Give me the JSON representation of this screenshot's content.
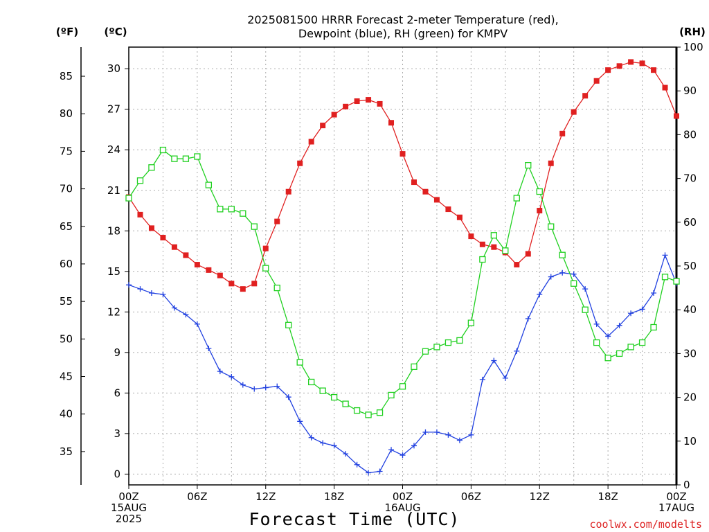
{
  "chart_data": {
    "type": "line",
    "title_lines": [
      "2025081500 HRRR Forecast 2-meter Temperature (red),",
      "Dewpoint (blue), RH (green) for KMPV"
    ],
    "xlabel": "Forecast Time (UTC)",
    "credit": "coolwx.com/modelts",
    "left_unit_f": "(ºF)",
    "left_unit_c": "(ºC)",
    "right_unit": "(RH)",
    "x_hours": [
      0,
      1,
      2,
      3,
      4,
      5,
      6,
      7,
      8,
      9,
      10,
      11,
      12,
      13,
      14,
      15,
      16,
      17,
      18,
      19,
      20,
      21,
      22,
      23,
      24,
      25,
      26,
      27,
      28,
      29,
      30,
      31,
      32,
      33,
      34,
      35,
      36,
      37,
      38,
      39,
      40,
      41,
      42,
      43,
      44,
      45,
      46,
      47,
      48
    ],
    "x_ticks": [
      {
        "hour": 0,
        "lines": [
          "00Z",
          "15AUG",
          "2025"
        ]
      },
      {
        "hour": 6,
        "lines": [
          "06Z"
        ]
      },
      {
        "hour": 12,
        "lines": [
          "12Z"
        ]
      },
      {
        "hour": 18,
        "lines": [
          "18Z"
        ]
      },
      {
        "hour": 24,
        "lines": [
          "00Z",
          "16AUG"
        ]
      },
      {
        "hour": 30,
        "lines": [
          "06Z"
        ]
      },
      {
        "hour": 36,
        "lines": [
          "12Z"
        ]
      },
      {
        "hour": 42,
        "lines": [
          "18Z"
        ]
      },
      {
        "hour": 48,
        "lines": [
          "00Z",
          "17AUG"
        ]
      }
    ],
    "xlim": [
      0,
      48
    ],
    "y_celsius": {
      "ticks": [
        0,
        3,
        6,
        9,
        12,
        15,
        18,
        21,
        24,
        27,
        30
      ],
      "lim": [
        -0.8,
        31.6
      ]
    },
    "y_fahrenheit": {
      "ticks": [
        35,
        40,
        45,
        50,
        55,
        60,
        65,
        70,
        75,
        80,
        85
      ]
    },
    "y_rh": {
      "ticks": [
        0,
        10,
        20,
        30,
        40,
        50,
        60,
        70,
        80,
        90,
        100
      ],
      "lim": [
        0,
        100
      ]
    },
    "series": [
      {
        "axis": "celsius",
        "color": "#e02020",
        "marker": "filled-square",
        "values": [
          20.5,
          19.2,
          18.2,
          17.5,
          16.8,
          16.2,
          15.5,
          15.1,
          14.7,
          14.1,
          13.7,
          14.1,
          16.7,
          18.7,
          20.9,
          23.0,
          24.6,
          25.8,
          26.6,
          27.2,
          27.6,
          27.7,
          27.4,
          26.0,
          23.7,
          21.6,
          20.9,
          20.3,
          19.6,
          19.0,
          17.6,
          17.0,
          16.8,
          16.4,
          15.5,
          16.3,
          19.5,
          23.0,
          25.2,
          26.8,
          28.0,
          29.1,
          29.9,
          30.2,
          30.5,
          30.4,
          29.9,
          28.6,
          26.5
        ]
      },
      {
        "axis": "celsius",
        "color": "#2040e0",
        "marker": "plus",
        "values": [
          14.0,
          13.7,
          13.4,
          13.3,
          12.3,
          11.8,
          11.1,
          9.3,
          7.6,
          7.2,
          6.6,
          6.3,
          6.4,
          6.5,
          5.7,
          3.9,
          2.7,
          2.3,
          2.1,
          1.5,
          0.7,
          0.1,
          0.2,
          1.8,
          1.4,
          2.1,
          3.1,
          3.1,
          2.9,
          2.5,
          2.9,
          7.0,
          8.4,
          7.1,
          9.1,
          11.5,
          13.3,
          14.6,
          14.9,
          14.8,
          13.7,
          11.1,
          10.2,
          11.0,
          11.9,
          12.2,
          13.4,
          16.2,
          14.1
        ]
      },
      {
        "axis": "rh",
        "color": "#20d020",
        "marker": "open-square",
        "values": [
          65.5,
          69.5,
          72.5,
          76.5,
          74.5,
          74.5,
          75.0,
          68.5,
          63.0,
          63.0,
          62.0,
          59.0,
          49.5,
          45.0,
          36.5,
          28.0,
          23.5,
          21.5,
          20.0,
          18.5,
          17.0,
          16.0,
          16.5,
          20.5,
          22.5,
          27.0,
          30.5,
          31.5,
          32.5,
          33.0,
          37.0,
          51.5,
          57.0,
          53.5,
          65.5,
          73.0,
          67.0,
          59.0,
          52.5,
          46.0,
          40.0,
          32.5,
          29.0,
          30.0,
          31.5,
          32.5,
          36.0,
          47.5,
          46.5
        ]
      }
    ],
    "grid": true
  }
}
